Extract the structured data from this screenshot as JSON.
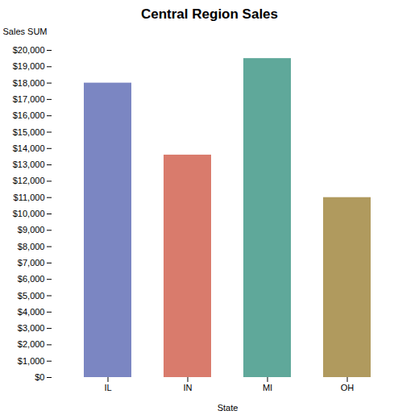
{
  "chart_data": {
    "type": "bar",
    "title": "Central Region Sales",
    "xlabel": "State",
    "ylabel": "Sales SUM",
    "categories": [
      "IL",
      "IN",
      "MI",
      "OH"
    ],
    "values": [
      18000,
      13600,
      19500,
      11000
    ],
    "colors": [
      "#7b86c2",
      "#d97b6c",
      "#5fa89a",
      "#b09a5e"
    ],
    "ylim": [
      0,
      20000
    ],
    "yticks": [
      {
        "value": 0,
        "label": "$0"
      },
      {
        "value": 1000,
        "label": "$1,000"
      },
      {
        "value": 2000,
        "label": "$2,000"
      },
      {
        "value": 3000,
        "label": "$3,000"
      },
      {
        "value": 4000,
        "label": "$4,000"
      },
      {
        "value": 5000,
        "label": "$5,000"
      },
      {
        "value": 6000,
        "label": "$6,000"
      },
      {
        "value": 7000,
        "label": "$7,000"
      },
      {
        "value": 8000,
        "label": "$8,000"
      },
      {
        "value": 9000,
        "label": "$9,000"
      },
      {
        "value": 10000,
        "label": "$10,000"
      },
      {
        "value": 11000,
        "label": "$11,000"
      },
      {
        "value": 12000,
        "label": "$12,000"
      },
      {
        "value": 13000,
        "label": "$13,000"
      },
      {
        "value": 14000,
        "label": "$14,000"
      },
      {
        "value": 15000,
        "label": "$15,000"
      },
      {
        "value": 16000,
        "label": "$16,000"
      },
      {
        "value": 17000,
        "label": "$17,000"
      },
      {
        "value": 18000,
        "label": "$18,000"
      },
      {
        "value": 19000,
        "label": "$19,000"
      },
      {
        "value": 20000,
        "label": "$20,000"
      }
    ],
    "grid": false
  }
}
